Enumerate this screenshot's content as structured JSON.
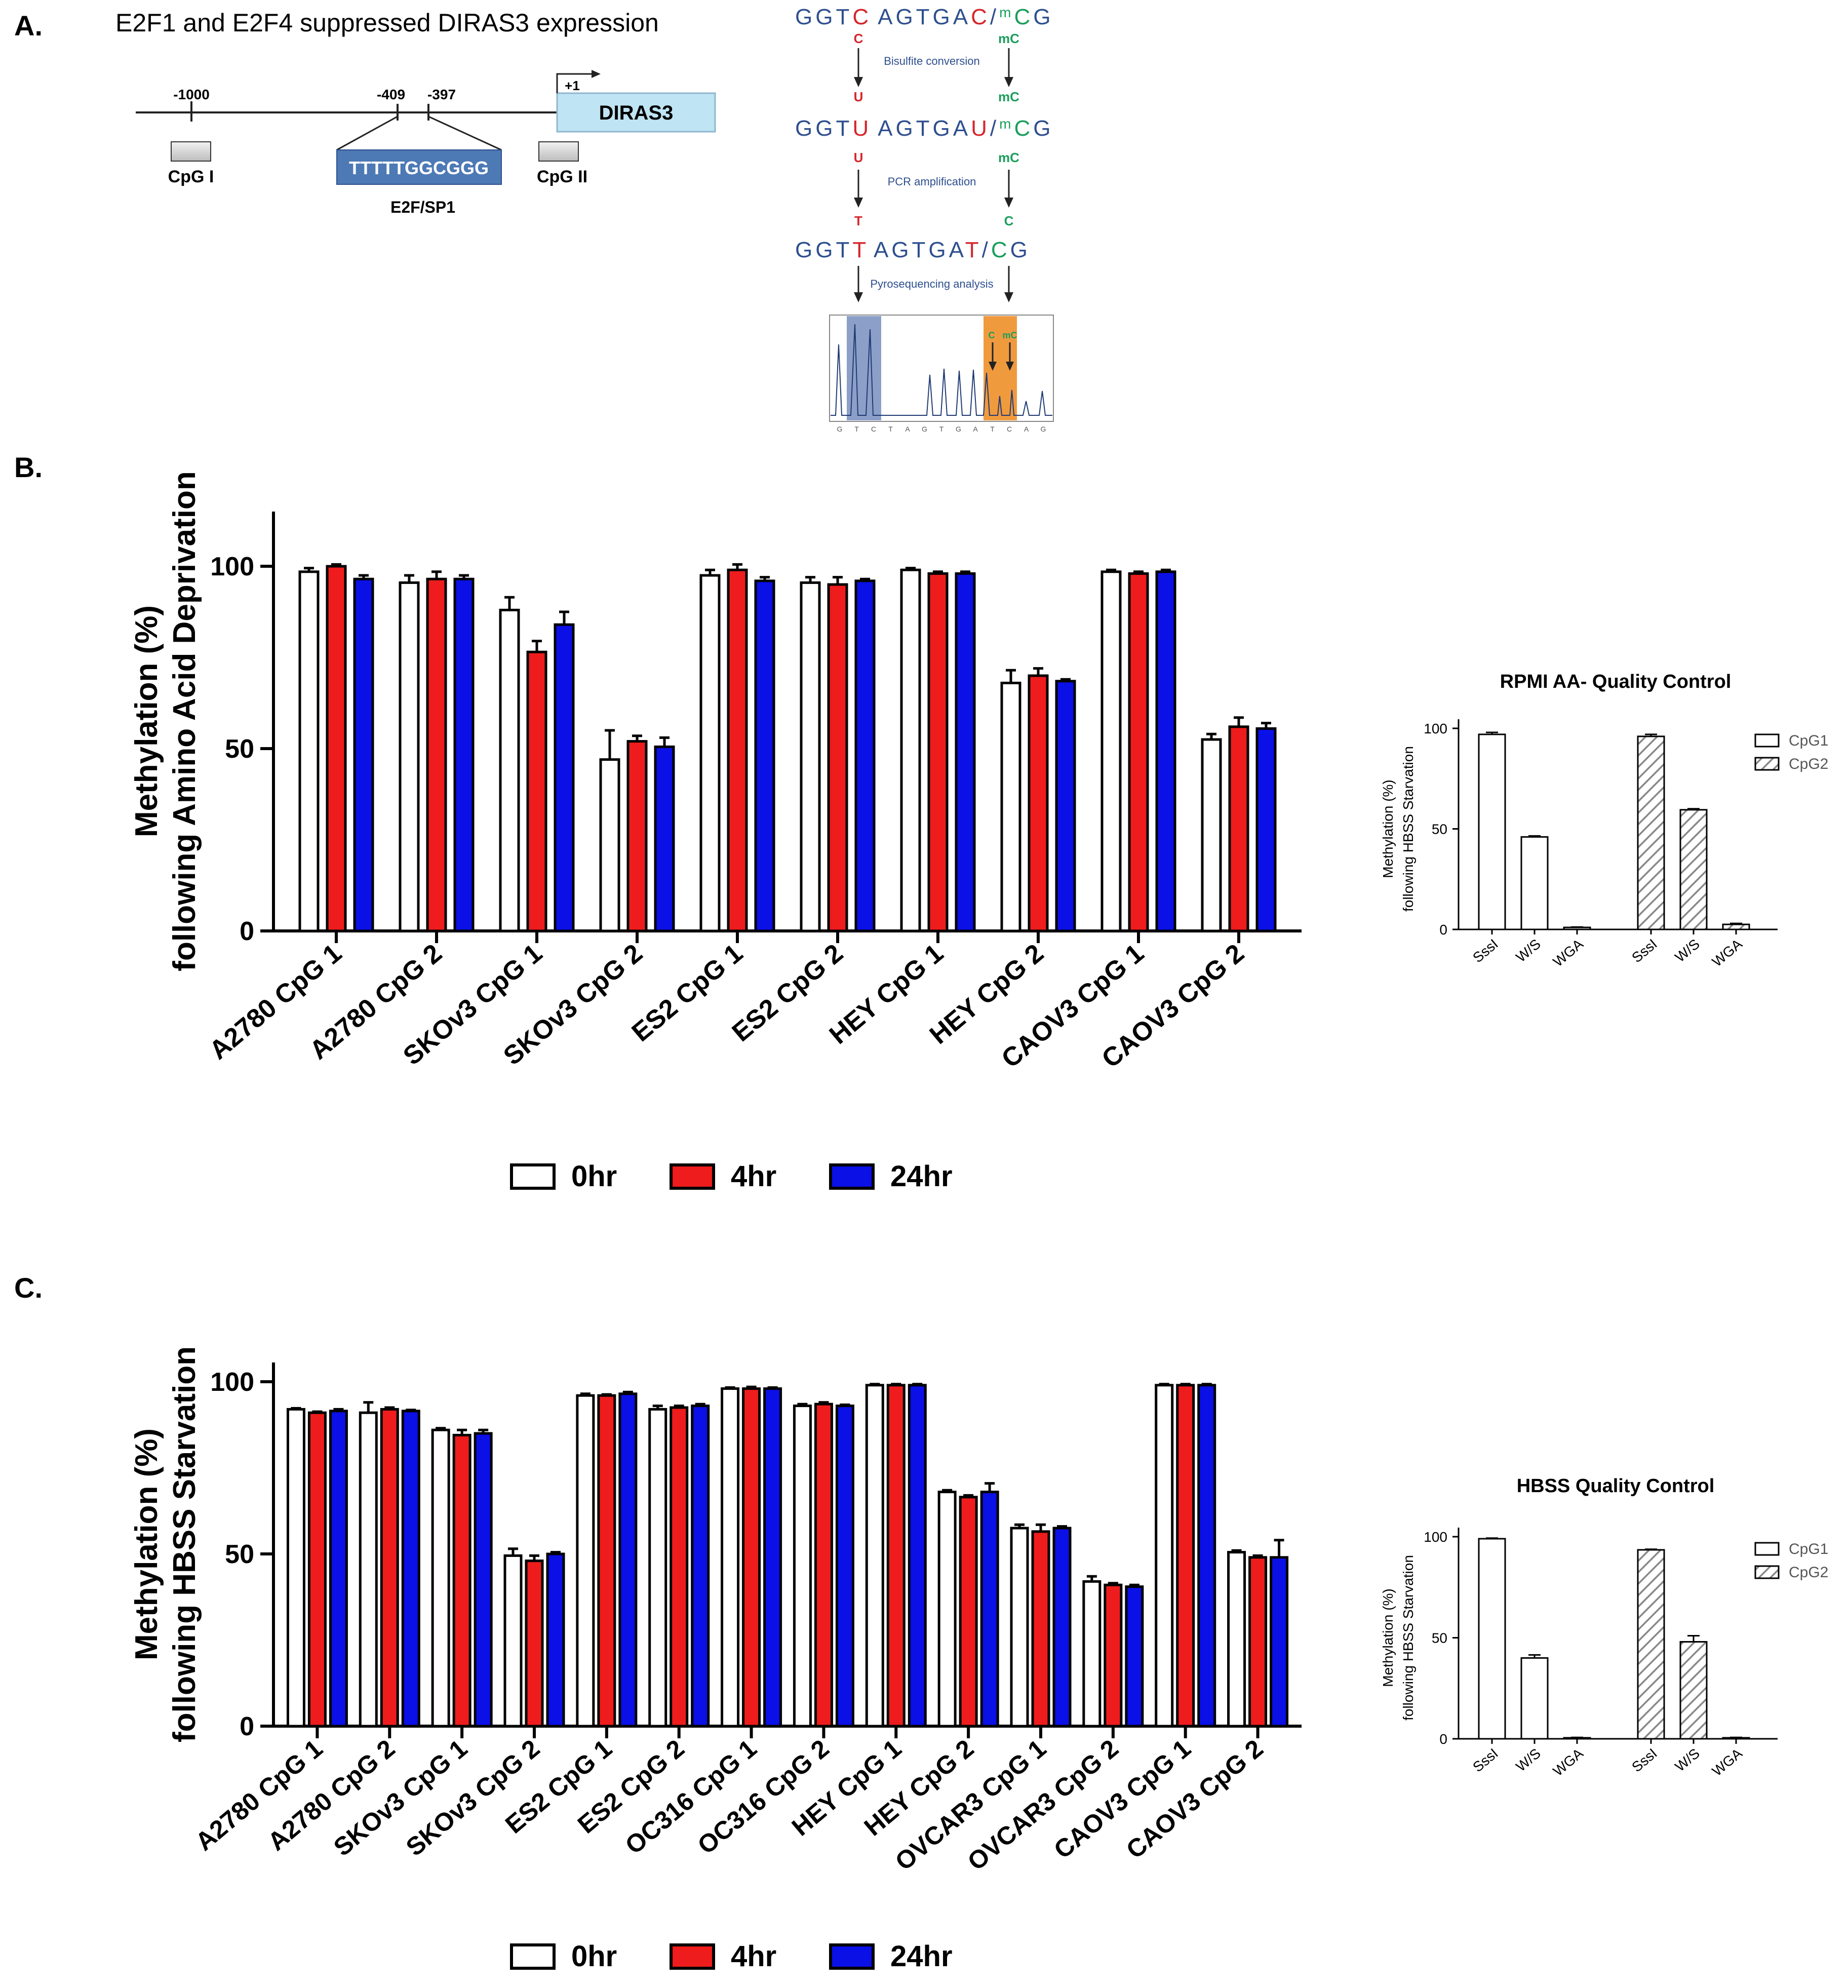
{
  "panels": {
    "a_letter": "A.",
    "a_title": "E2F1 and E2F4 suppressed DIRAS3 expression",
    "b_letter": "B.",
    "c_letter": "C."
  },
  "promoter": {
    "pos_1000": "-1000",
    "pos_409": "-409",
    "pos_397": "-397",
    "tss": "+1",
    "gene": "DIRAS3",
    "cpg1": "CpG I",
    "cpg2": "CpG II",
    "motif": "TTTTTGGCGGG",
    "motif_label": "E2F/SP1"
  },
  "bisulfite": {
    "seq1_a": "GGT",
    "seq1_b": "C",
    "seq1_c": "AGTGA",
    "seq1_d": "C",
    "seq1_e": "/",
    "seq1_f": "m",
    "seq1_g": "C",
    "seq1_h": "G",
    "c_left": "C",
    "mc_right_1": "mC",
    "step1": "Bisulfite conversion",
    "u_left": "U",
    "mc_right_2": "mC",
    "seq2_a": "GGT",
    "seq2_b": "U",
    "seq2_c": "AGTGA",
    "seq2_d": "U",
    "seq2_e": "/",
    "seq2_f": "m",
    "seq2_g": "C",
    "seq2_h": "G",
    "u_left_2": "U",
    "mc_right_3": "mC",
    "step2": "PCR amplification",
    "t_left": "T",
    "c_right": "C",
    "seq3_a": "GGT",
    "seq3_b": "T",
    "seq3_c": "AGTGA",
    "seq3_d": "T",
    "seq3_e": "/",
    "seq3_f": "C",
    "seq3_g": "G",
    "step3": "Pyrosequencing analysis",
    "pyro_c": "C",
    "pyro_mc": "mC",
    "pyro_bases": [
      "G",
      "T",
      "C",
      "T",
      "A",
      "G",
      "T",
      "G",
      "A",
      "T",
      "C",
      "A",
      "G"
    ]
  },
  "colors": {
    "h0": "#ffffff",
    "h4": "#ee1c1c",
    "h24": "#0a10e6",
    "seq_blue": "#2e4f8f",
    "seq_red": "#d6252c",
    "seq_green": "#1a9e5c",
    "gene_box": "#bfe4f3",
    "motif_box": "#4d79b5",
    "pyro_blue": "#8c9fc8",
    "pyro_orange": "#f09a3e"
  },
  "chart_data": [
    {
      "id": "B_main",
      "type": "bar",
      "ylabel_line1": "Methylation (%)",
      "ylabel_line2": "following Amino Acid Deprivation",
      "ylim": [
        0,
        100
      ],
      "yticks": [
        "0",
        "50",
        "100"
      ],
      "categories": [
        "A2780 CpG 1",
        "A2780 CpG 2",
        "SKOv3 CpG 1",
        "SKOv3 CpG 2",
        "ES2 CpG 1",
        "ES2 CpG 2",
        "HEY CpG 1",
        "HEY CpG 2",
        "CAOV3 CpG 1",
        "CAOV3 CpG 2"
      ],
      "series": [
        {
          "name": "0hr",
          "values": [
            98.5,
            95.5,
            88,
            47,
            97.5,
            95.5,
            99,
            68,
            98.5,
            52.5
          ],
          "errors": [
            1,
            2,
            3.5,
            8,
            1.5,
            1.5,
            0.5,
            3.5,
            0.5,
            1.5
          ]
        },
        {
          "name": "4hr",
          "values": [
            100,
            96.5,
            76.5,
            52,
            99,
            95,
            98,
            70,
            98,
            56
          ],
          "errors": [
            0.5,
            2,
            3,
            1.5,
            1.5,
            2,
            0.5,
            2,
            0.5,
            2.5
          ]
        },
        {
          "name": "24hr",
          "values": [
            96.5,
            96.5,
            84,
            50.5,
            96,
            96,
            98,
            68.5,
            98.5,
            55.5
          ],
          "errors": [
            1,
            1,
            3.5,
            2.5,
            1,
            0.5,
            0.5,
            0.5,
            0.5,
            1.5
          ]
        }
      ],
      "legend": [
        "0hr",
        "4hr",
        "24hr"
      ]
    },
    {
      "id": "B_qc",
      "type": "bar",
      "title": "RPMI AA- Quality Control",
      "ylabel_line1": "Methylation (%)",
      "ylabel_line2": "following HBSS Starvation",
      "ylim": [
        0,
        100
      ],
      "yticks": [
        "0",
        "50",
        "100"
      ],
      "groups": [
        {
          "name": "CpG1",
          "categories": [
            "SssI",
            "W/S",
            "WGA"
          ],
          "values": [
            97,
            46,
            1
          ],
          "errors": [
            1,
            0.5,
            0.2
          ]
        },
        {
          "name": "CpG2",
          "categories": [
            "SssI",
            "W/S",
            "WGA"
          ],
          "values": [
            96,
            59.5,
            2.5
          ],
          "errors": [
            1,
            0.5,
            0.5
          ]
        }
      ],
      "legend": [
        "CpG1",
        "CpG2"
      ]
    },
    {
      "id": "C_main",
      "type": "bar",
      "ylabel_line1": "Methylation (%)",
      "ylabel_line2": "following HBSS Starvation",
      "ylim": [
        0,
        100
      ],
      "yticks": [
        "0",
        "50",
        "100"
      ],
      "categories": [
        "A2780 CpG 1",
        "A2780 CpG 2",
        "SKOv3 CpG 1",
        "SKOv3 CpG 2",
        "ES2 CpG 1",
        "ES2 CpG 2",
        "OC316 CpG 1",
        "OC316 CpG 2",
        "HEY CpG 1",
        "HEY CpG 2",
        "OVCAR3 CpG 1",
        "OVCAR3 CpG 2",
        "CAOV3 CpG 1",
        "CAOV3 CpG 2"
      ],
      "series": [
        {
          "name": "0hr",
          "values": [
            92,
            91,
            86,
            49.5,
            96,
            92,
            98,
            93,
            99,
            68,
            57.5,
            42,
            99,
            50.5
          ],
          "errors": [
            0.3,
            3,
            0.5,
            2,
            0.5,
            1,
            0.3,
            0.5,
            0.3,
            0.5,
            1,
            1.5,
            0.3,
            0.5
          ]
        },
        {
          "name": "4hr",
          "values": [
            91,
            92,
            84.5,
            48,
            96,
            92.5,
            98,
            93.5,
            99,
            66.5,
            56.5,
            41,
            99,
            49
          ],
          "errors": [
            0.3,
            0.5,
            1.5,
            1.5,
            0.3,
            0.5,
            0.5,
            0.5,
            0.3,
            0.5,
            2,
            0.5,
            0.3,
            0.5
          ]
        },
        {
          "name": "24hr",
          "values": [
            91.5,
            91.5,
            85,
            50,
            96.5,
            93,
            98,
            93,
            99,
            68,
            57.5,
            40.5,
            99,
            49
          ],
          "errors": [
            0.5,
            0.3,
            1,
            0.5,
            0.5,
            0.5,
            0.3,
            0.3,
            0.3,
            2.5,
            0.5,
            0.5,
            0.3,
            5
          ]
        }
      ],
      "legend": [
        "0hr",
        "4hr",
        "24hr"
      ]
    },
    {
      "id": "C_qc",
      "type": "bar",
      "title": "HBSS Quality Control",
      "ylabel_line1": "Methylation (%)",
      "ylabel_line2": "following HBSS Starvation",
      "ylim": [
        0,
        100
      ],
      "yticks": [
        "0",
        "50",
        "100"
      ],
      "groups": [
        {
          "name": "CpG1",
          "categories": [
            "SssI",
            "W/S",
            "WGA"
          ],
          "values": [
            99,
            40,
            0.5
          ],
          "errors": [
            0.3,
            1.5,
            0.2
          ]
        },
        {
          "name": "CpG2",
          "categories": [
            "SssI",
            "W/S",
            "WGA"
          ],
          "values": [
            93.5,
            48,
            0.5
          ],
          "errors": [
            0.3,
            3,
            0.2
          ]
        }
      ],
      "legend": [
        "CpG1",
        "CpG2"
      ]
    }
  ]
}
